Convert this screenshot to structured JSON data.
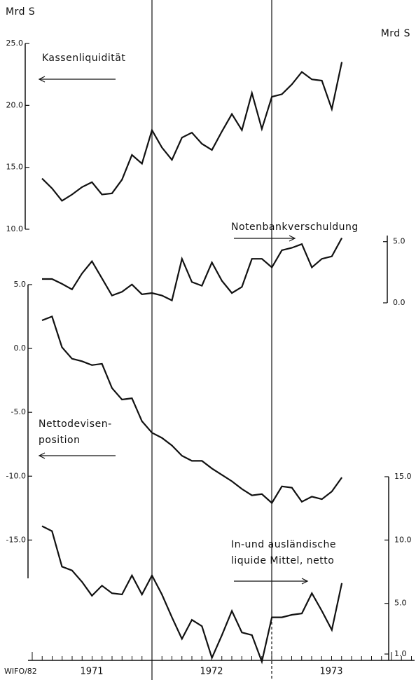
{
  "unit_left": "Mrd S",
  "unit_right": "Mrd S",
  "source": "WIFO/82",
  "year_labels": [
    "1971",
    "1972",
    "1973"
  ],
  "chart_data": [
    {
      "type": "line",
      "annotation": [
        "Kassenliquidität"
      ],
      "color": "#111111",
      "axis_side": "left",
      "ylim": [
        10,
        25
      ],
      "yticks": [
        {
          "value": 25,
          "label": "25.0"
        },
        {
          "value": 20,
          "label": "20.0"
        },
        {
          "value": 15,
          "label": "15.0"
        },
        {
          "value": 10,
          "label": "10.0"
        }
      ],
      "values": [
        14.1,
        13.3,
        12.3,
        12.8,
        13.4,
        13.8,
        12.8,
        12.9,
        14.0,
        16.0,
        15.3,
        18.0,
        16.6,
        15.6,
        17.4,
        17.8,
        16.9,
        16.4,
        17.9,
        19.3,
        18.0,
        21.0,
        18.1,
        20.7,
        20.9,
        21.7,
        22.7,
        22.1,
        22.0,
        19.7,
        23.5
      ]
    },
    {
      "type": "line",
      "annotation": [
        "Notenbankverschuldung"
      ],
      "color": "#111111",
      "axis_side": "right",
      "ylim": [
        0,
        5.5
      ],
      "yticks": [
        {
          "value": 5,
          "label": "5.0"
        },
        {
          "value": 0,
          "label": "0.0"
        }
      ],
      "values": [
        1.95,
        1.95,
        1.55,
        1.1,
        2.4,
        3.4,
        2.0,
        0.6,
        0.9,
        1.5,
        0.7,
        0.8,
        0.6,
        0.2,
        3.6,
        1.7,
        1.4,
        3.3,
        1.8,
        0.8,
        1.3,
        3.6,
        3.6,
        2.9,
        4.3,
        4.5,
        4.8,
        2.9,
        3.6,
        3.8,
        5.3
      ]
    },
    {
      "type": "line",
      "annotation": [
        "Nettodevisen-",
        "position"
      ],
      "color": "#111111",
      "axis_side": "left",
      "ylim": [
        -18,
        5
      ],
      "yticks": [
        {
          "value": 5,
          "label": "5.0"
        },
        {
          "value": 0,
          "label": "0.0"
        },
        {
          "value": -5,
          "label": "-5.0"
        },
        {
          "value": -10,
          "label": "-10.0"
        },
        {
          "value": -15,
          "label": "-15.0"
        }
      ],
      "values": [
        2.2,
        2.5,
        0.1,
        -0.8,
        -1.0,
        -1.3,
        -1.2,
        -3.1,
        -4.0,
        -3.9,
        -5.7,
        -6.6,
        -7.0,
        -7.6,
        -8.4,
        -8.8,
        -8.8,
        -9.4,
        -9.9,
        -10.4,
        -11.0,
        -11.5,
        -11.4,
        -12.1,
        -10.8,
        -10.9,
        -12.0,
        -11.6,
        -11.8,
        -11.2,
        -10.1
      ]
    },
    {
      "type": "line",
      "annotation": [
        "In-und ausländische",
        "liquide Mittel, netto"
      ],
      "color": "#111111",
      "axis_side": "right",
      "ylim": [
        0.5,
        15
      ],
      "yticks": [
        {
          "value": 15,
          "label": "15.0"
        },
        {
          "value": 10,
          "label": "10.0"
        },
        {
          "value": 5,
          "label": "5.0"
        },
        {
          "value": 1,
          "label": "1.0"
        }
      ],
      "values": [
        11.1,
        10.7,
        7.9,
        7.6,
        6.7,
        5.6,
        6.4,
        5.8,
        5.7,
        7.2,
        5.7,
        7.2,
        5.7,
        3.9,
        2.2,
        3.7,
        3.2,
        0.7,
        2.5,
        4.4,
        2.7,
        2.5,
        0.4,
        3.9,
        3.9,
        4.1,
        4.2,
        5.8,
        4.4,
        2.9,
        6.6
      ]
    }
  ]
}
